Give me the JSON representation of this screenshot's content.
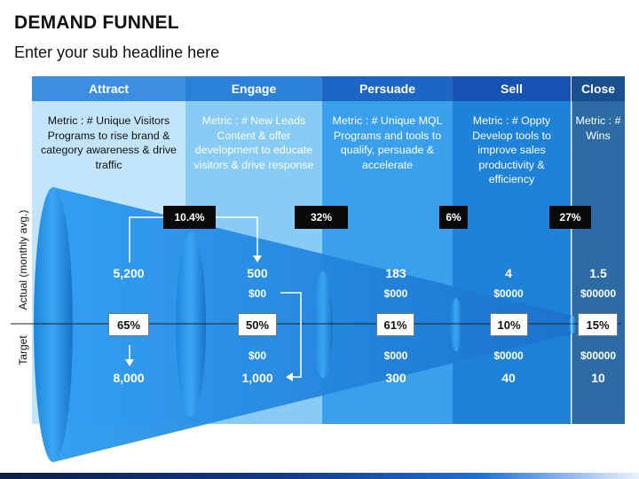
{
  "title": "DEMAND FUNNEL",
  "subtitle": "Enter your sub headline here",
  "columns": [
    {
      "label": "Attract",
      "metric": "Metric : # Unique Visitors Programs to rise brand & category awareness & drive traffic"
    },
    {
      "label": "Engage",
      "metric": "Metric : # New Leads Content & offer development to educate visitors & drive response"
    },
    {
      "label": "Persuade",
      "metric": "Metric : # Unique MQL Programs and tools to qualify, persuade & accelerate"
    },
    {
      "label": "Sell",
      "metric": "Metric : # Oppty Develop tools to improve sales productivity & efficiency"
    },
    {
      "label": "Close",
      "metric": "Metric : # Wins"
    }
  ],
  "stage_rates": [
    "10.4%",
    "32%",
    "6%",
    "27%"
  ],
  "actual": [
    "5,200",
    "500",
    "183",
    "4",
    "1.5"
  ],
  "actual_money": [
    "$00",
    "$000",
    "$0000",
    "$00000"
  ],
  "conversion": [
    "65%",
    "50%",
    "61%",
    "10%",
    "15%"
  ],
  "target_money": [
    "$00",
    "$000",
    "$0000",
    "$00000"
  ],
  "target": [
    "8,000",
    "1,000",
    "300",
    "40",
    "10"
  ],
  "side_labels": {
    "actual": "Actual (monthly avg.)",
    "target": "Target"
  },
  "colors": {
    "attract": "#bfe3fb",
    "engage": "#8ccdf5",
    "persuade": "#3aa0ec",
    "sell": "#1d7fd6",
    "close": "#2f6fa6",
    "head_attract": "#3c8fe0",
    "head_engage": "#2c80d6",
    "head_persuade": "#1d66c4",
    "head_sell": "#1653b0",
    "head_close": "#1a4f8f",
    "funnel": "#1f8fe8",
    "funnel_ring": "#1c7dd1"
  }
}
